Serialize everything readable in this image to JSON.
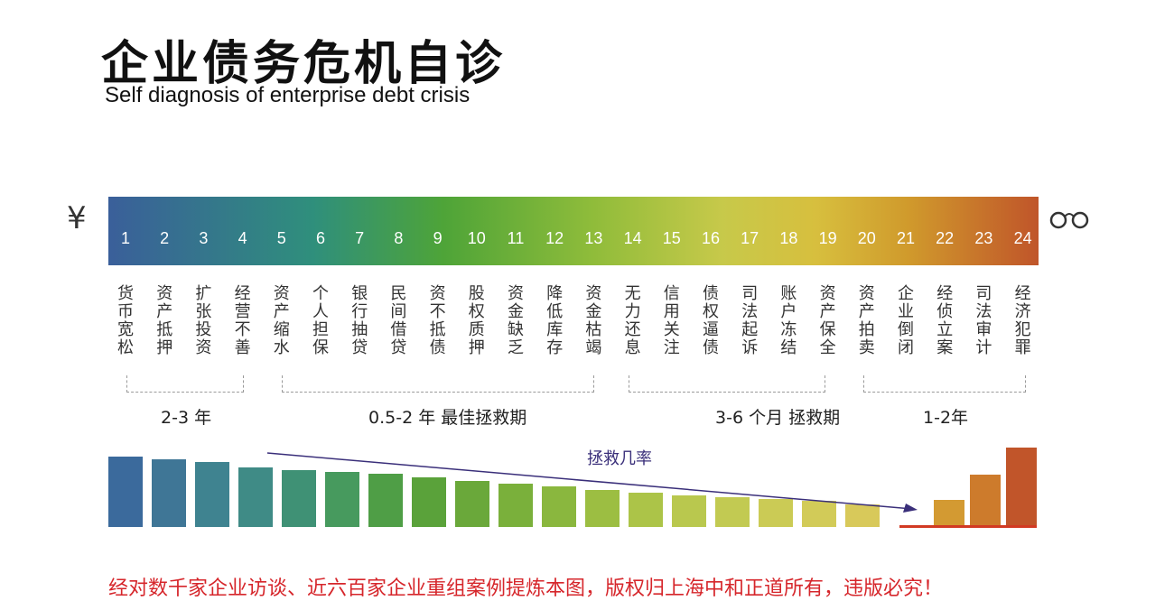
{
  "title": "企业债务危机自诊",
  "subtitle": "Self diagnosis of enterprise debt crisis",
  "left_icon": "yen-icon",
  "right_icon": "handcuffs-icon",
  "left_symbol": "¥",
  "numbers": [
    "1",
    "2",
    "3",
    "4",
    "5",
    "6",
    "7",
    "8",
    "9",
    "10",
    "11",
    "12",
    "13",
    "14",
    "15",
    "16",
    "17",
    "18",
    "19",
    "20",
    "21",
    "22",
    "23",
    "24"
  ],
  "labels": [
    "货币宽松",
    "资产抵押",
    "扩张投资",
    "经营不善",
    "资产缩水",
    "个人担保",
    "银行抽贷",
    "民间借贷",
    "资不抵债",
    "股权质押",
    "资金缺乏",
    "降低库存",
    "资金枯竭",
    "无力还息",
    "信用关注",
    "债权逼债",
    "司法起诉",
    "账户冻结",
    "资产保全",
    "资产拍卖",
    "企业倒闭",
    "经侦立案",
    "司法审计",
    "经济犯罪"
  ],
  "periods": [
    {
      "text": "2-3 年"
    },
    {
      "text": "0.5-2  年   最佳拯救期"
    },
    {
      "text": "3-6  个月   拯救期"
    },
    {
      "text": "1-2年"
    }
  ],
  "chart_data": {
    "type": "bar",
    "arrow_label": "拯救几率",
    "categories": [
      "1",
      "2",
      "3",
      "4",
      "5",
      "6",
      "7",
      "8",
      "9",
      "10",
      "11",
      "12",
      "13",
      "14",
      "15",
      "16",
      "17",
      "18",
      "19",
      "21",
      "22",
      "23"
    ],
    "values": [
      78,
      75,
      72,
      66,
      63,
      61,
      59,
      55,
      51,
      48,
      45,
      41,
      38,
      35,
      33,
      31,
      29,
      25,
      22,
      30,
      58,
      88
    ],
    "colors": [
      "#3b6a9c",
      "#3f7696",
      "#3f8390",
      "#3f8b86",
      "#3f9175",
      "#479a5e",
      "#4f9e46",
      "#5aa23a",
      "#6aa83a",
      "#7ab03b",
      "#8ab73e",
      "#9cbe42",
      "#acc448",
      "#b9c84e",
      "#c2ca52",
      "#cbcb55",
      "#d2cb58",
      "#d8c95a",
      "#ddc45a",
      "#d39a32",
      "#cd7b2c",
      "#c1552a"
    ],
    "baseline_color": "#d23a23"
  },
  "footer": "经对数千家企业访谈、近六百家企业重组案例提炼本图，版权归上海中和正道所有，违版必究！"
}
